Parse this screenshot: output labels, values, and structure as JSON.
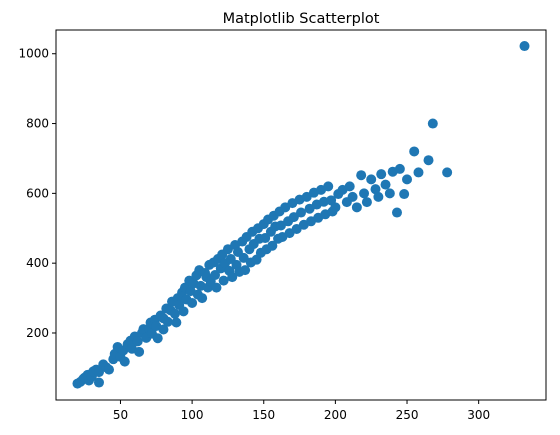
{
  "chart_data": {
    "type": "scatter",
    "title": "Matplotlib Scatterplot",
    "xlabel": "",
    "ylabel": "",
    "xlim": [
      5,
      347
    ],
    "ylim": [
      8,
      1068
    ],
    "x_ticks": [
      50,
      100,
      150,
      200,
      250,
      300
    ],
    "y_ticks": [
      200,
      400,
      600,
      800,
      1000
    ],
    "grid": false,
    "legend": "none",
    "marker_color": "#1f77b4",
    "points": [
      [
        20,
        55
      ],
      [
        22,
        60
      ],
      [
        24,
        68
      ],
      [
        25,
        72
      ],
      [
        27,
        80
      ],
      [
        28,
        64
      ],
      [
        30,
        75
      ],
      [
        31,
        90
      ],
      [
        33,
        95
      ],
      [
        35,
        88
      ],
      [
        35,
        58
      ],
      [
        38,
        110
      ],
      [
        40,
        102
      ],
      [
        42,
        95
      ],
      [
        45,
        125
      ],
      [
        46,
        140
      ],
      [
        48,
        160
      ],
      [
        50,
        132
      ],
      [
        52,
        150
      ],
      [
        53,
        118
      ],
      [
        55,
        168
      ],
      [
        57,
        178
      ],
      [
        58,
        155
      ],
      [
        60,
        190
      ],
      [
        62,
        176
      ],
      [
        63,
        146
      ],
      [
        65,
        200
      ],
      [
        66,
        211
      ],
      [
        68,
        186
      ],
      [
        70,
        212
      ],
      [
        71,
        230
      ],
      [
        72,
        198
      ],
      [
        74,
        238
      ],
      [
        75,
        220
      ],
      [
        76,
        185
      ],
      [
        78,
        250
      ],
      [
        80,
        242
      ],
      [
        80,
        210
      ],
      [
        82,
        270
      ],
      [
        83,
        232
      ],
      [
        85,
        265
      ],
      [
        86,
        290
      ],
      [
        88,
        255
      ],
      [
        89,
        230
      ],
      [
        90,
        300
      ],
      [
        91,
        280
      ],
      [
        93,
        316
      ],
      [
        94,
        262
      ],
      [
        95,
        330
      ],
      [
        96,
        296
      ],
      [
        98,
        350
      ],
      [
        99,
        320
      ],
      [
        100,
        286
      ],
      [
        101,
        342
      ],
      [
        103,
        365
      ],
      [
        104,
        310
      ],
      [
        105,
        380
      ],
      [
        106,
        335
      ],
      [
        107,
        300
      ],
      [
        109,
        372
      ],
      [
        110,
        360
      ],
      [
        111,
        330
      ],
      [
        112,
        395
      ],
      [
        113,
        348
      ],
      [
        115,
        402
      ],
      [
        116,
        366
      ],
      [
        117,
        330
      ],
      [
        118,
        412
      ],
      [
        120,
        385
      ],
      [
        121,
        425
      ],
      [
        122,
        350
      ],
      [
        123,
        400
      ],
      [
        125,
        440
      ],
      [
        126,
        378
      ],
      [
        127,
        412
      ],
      [
        128,
        360
      ],
      [
        130,
        452
      ],
      [
        131,
        395
      ],
      [
        132,
        432
      ],
      [
        133,
        375
      ],
      [
        135,
        462
      ],
      [
        136,
        415
      ],
      [
        137,
        380
      ],
      [
        138,
        475
      ],
      [
        140,
        440
      ],
      [
        141,
        402
      ],
      [
        142,
        490
      ],
      [
        143,
        455
      ],
      [
        145,
        410
      ],
      [
        146,
        500
      ],
      [
        147,
        470
      ],
      [
        148,
        430
      ],
      [
        150,
        512
      ],
      [
        151,
        472
      ],
      [
        152,
        440
      ],
      [
        153,
        525
      ],
      [
        155,
        490
      ],
      [
        156,
        450
      ],
      [
        157,
        536
      ],
      [
        158,
        505
      ],
      [
        160,
        470
      ],
      [
        161,
        548
      ],
      [
        162,
        508
      ],
      [
        163,
        475
      ],
      [
        165,
        560
      ],
      [
        167,
        520
      ],
      [
        168,
        486
      ],
      [
        170,
        572
      ],
      [
        171,
        532
      ],
      [
        173,
        498
      ],
      [
        175,
        582
      ],
      [
        176,
        545
      ],
      [
        178,
        510
      ],
      [
        180,
        590
      ],
      [
        182,
        556
      ],
      [
        183,
        520
      ],
      [
        185,
        602
      ],
      [
        187,
        568
      ],
      [
        188,
        530
      ],
      [
        190,
        610
      ],
      [
        192,
        576
      ],
      [
        193,
        540
      ],
      [
        195,
        620
      ],
      [
        197,
        580
      ],
      [
        198,
        548
      ],
      [
        200,
        560
      ],
      [
        202,
        598
      ],
      [
        205,
        610
      ],
      [
        208,
        575
      ],
      [
        210,
        620
      ],
      [
        212,
        590
      ],
      [
        215,
        560
      ],
      [
        218,
        652
      ],
      [
        220,
        600
      ],
      [
        222,
        575
      ],
      [
        225,
        640
      ],
      [
        228,
        612
      ],
      [
        230,
        590
      ],
      [
        232,
        655
      ],
      [
        235,
        625
      ],
      [
        238,
        600
      ],
      [
        240,
        662
      ],
      [
        243,
        545
      ],
      [
        245,
        670
      ],
      [
        248,
        598
      ],
      [
        250,
        640
      ],
      [
        255,
        720
      ],
      [
        258,
        660
      ],
      [
        265,
        695
      ],
      [
        268,
        800
      ],
      [
        278,
        660
      ],
      [
        332,
        1022
      ]
    ]
  }
}
